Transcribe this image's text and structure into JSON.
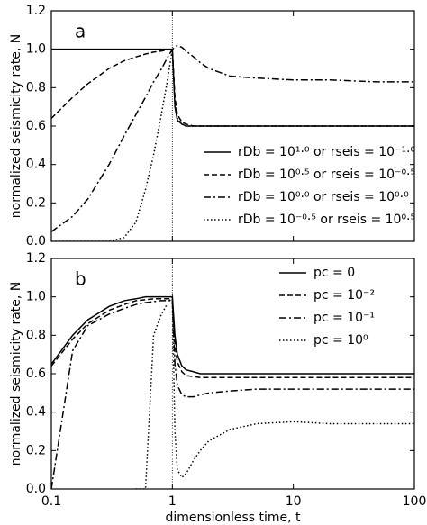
{
  "chart_data": [
    {
      "type": "line",
      "annotation": "a",
      "ylabel": "normalized seismicity rate, N",
      "xscale": "log",
      "xlim": [
        0.1,
        100
      ],
      "xticks": [
        0.1,
        1,
        10,
        100
      ],
      "ylim": [
        0,
        1.2
      ],
      "yticks": [
        {
          "value": 0,
          "label": "0.0"
        },
        0.2,
        0.4,
        0.6,
        0.8,
        {
          "value": 1,
          "label": "1.0"
        },
        1.2
      ],
      "vlines": [
        1
      ],
      "legend": "lower right",
      "grid": false,
      "x": [
        0.1,
        0.15,
        0.2,
        0.3,
        0.4,
        0.5,
        0.6,
        0.7,
        0.8,
        0.9,
        1.0,
        1.05,
        1.1,
        1.2,
        1.3,
        1.5,
        1.7,
        2,
        3,
        5,
        10,
        20,
        50,
        100
      ],
      "series": [
        {
          "name": "rDb = 10¹·⁰ or rseis = 10⁻¹·⁰",
          "color": "#000000",
          "dash": "solid",
          "values": [
            1.0,
            1.0,
            1.0,
            1.0,
            1.0,
            1.0,
            1.0,
            1.0,
            1.0,
            1.0,
            1.0,
            0.7,
            0.63,
            0.61,
            0.6,
            0.6,
            0.6,
            0.6,
            0.6,
            0.6,
            0.6,
            0.6,
            0.6,
            0.6
          ]
        },
        {
          "name": "rDb = 10⁰·⁵ or rseis = 10⁻⁰·⁵",
          "color": "#000000",
          "dash": "dashed",
          "values": [
            0.64,
            0.75,
            0.82,
            0.9,
            0.94,
            0.96,
            0.975,
            0.985,
            0.99,
            0.995,
            1.0,
            0.75,
            0.66,
            0.62,
            0.61,
            0.6,
            0.6,
            0.6,
            0.6,
            0.6,
            0.6,
            0.6,
            0.6,
            0.6
          ]
        },
        {
          "name": "rDb = 10⁰·⁰ or rseis = 10⁰·⁰",
          "color": "#000000",
          "dash": "dashdot",
          "values": [
            0.05,
            0.13,
            0.22,
            0.4,
            0.55,
            0.66,
            0.75,
            0.83,
            0.89,
            0.95,
            1.0,
            1.01,
            1.02,
            1.01,
            0.99,
            0.96,
            0.93,
            0.9,
            0.86,
            0.85,
            0.84,
            0.84,
            0.83,
            0.83
          ]
        },
        {
          "name": "rDb = 10⁻⁰·⁵ or rseis = 10⁰·⁵",
          "color": "#000000",
          "dash": "dotted",
          "values": [
            0,
            0,
            0,
            0,
            0.02,
            0.1,
            0.27,
            0.45,
            0.64,
            0.82,
            1.0,
            0.72,
            0.64,
            0.61,
            0.6,
            0.6,
            0.6,
            0.6,
            0.6,
            0.6,
            0.6,
            0.6,
            0.6,
            0.6
          ]
        }
      ]
    },
    {
      "type": "line",
      "annotation": "b",
      "ylabel": "normalized seismicity rate, N",
      "xlabel": "dimensionless time, t",
      "xscale": "log",
      "xlim": [
        0.1,
        100
      ],
      "xticks": [
        0.1,
        1,
        10,
        100
      ],
      "ylim": [
        0,
        1.2
      ],
      "yticks": [
        {
          "value": 0,
          "label": "0.0"
        },
        0.2,
        0.4,
        0.6,
        0.8,
        {
          "value": 1,
          "label": "1.0"
        },
        1.2
      ],
      "vlines": [
        1
      ],
      "legend": "upper right",
      "grid": false,
      "x": [
        0.1,
        0.15,
        0.2,
        0.3,
        0.4,
        0.5,
        0.6,
        0.7,
        0.8,
        0.9,
        1.0,
        1.05,
        1.1,
        1.2,
        1.3,
        1.5,
        1.7,
        2,
        3,
        5,
        10,
        20,
        50,
        100
      ],
      "series": [
        {
          "name": "pc = 0",
          "color": "#000000",
          "dash": "solid",
          "values": [
            0.65,
            0.8,
            0.88,
            0.95,
            0.98,
            0.99,
            1.0,
            1.0,
            1.0,
            1.0,
            1.0,
            0.8,
            0.7,
            0.64,
            0.62,
            0.61,
            0.6,
            0.6,
            0.6,
            0.6,
            0.6,
            0.6,
            0.6,
            0.6
          ]
        },
        {
          "name": "pc = 10⁻²",
          "color": "#000000",
          "dash": "dashed",
          "values": [
            0.64,
            0.78,
            0.86,
            0.93,
            0.96,
            0.98,
            0.985,
            0.99,
            0.99,
            0.99,
            0.99,
            0.75,
            0.66,
            0.61,
            0.59,
            0.585,
            0.58,
            0.58,
            0.58,
            0.58,
            0.58,
            0.58,
            0.58,
            0.58
          ]
        },
        {
          "name": "pc = 10⁻¹",
          "color": "#000000",
          "dash": "dashdot",
          "values": [
            0.0,
            0.72,
            0.85,
            0.91,
            0.94,
            0.96,
            0.97,
            0.975,
            0.98,
            0.98,
            0.98,
            0.65,
            0.54,
            0.49,
            0.48,
            0.48,
            0.49,
            0.5,
            0.51,
            0.52,
            0.52,
            0.52,
            0.52,
            0.52
          ]
        },
        {
          "name": "pc = 10⁰",
          "color": "#000000",
          "dash": "dotted",
          "values": [
            null,
            null,
            null,
            null,
            null,
            0.0,
            0.0,
            0.8,
            0.9,
            0.96,
            1.0,
            0.3,
            0.1,
            0.06,
            0.08,
            0.15,
            0.2,
            0.25,
            0.31,
            0.34,
            0.35,
            0.34,
            0.34,
            0.34
          ]
        }
      ]
    }
  ]
}
